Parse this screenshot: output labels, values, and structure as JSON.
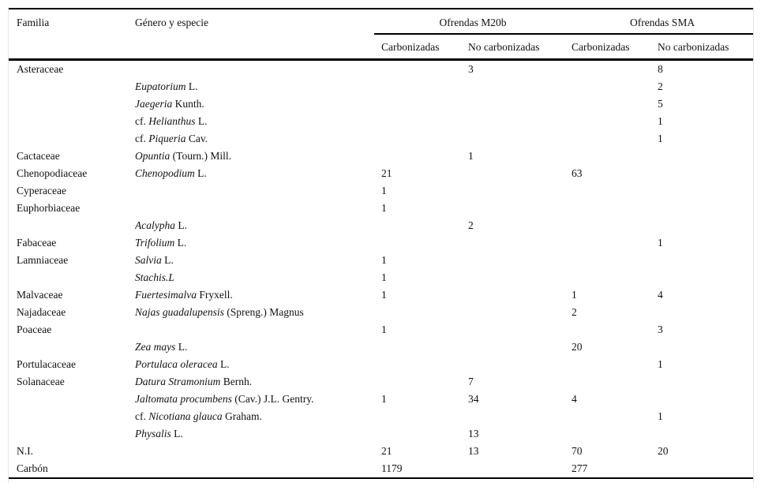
{
  "table": {
    "headers": {
      "familia": "Familia",
      "genero": "Género y especie",
      "group_m20b": "Ofrendas M20b",
      "group_sma": "Ofrendas SMA",
      "m20b_carb": "Carbonizadas",
      "m20b_nocarb": "No carbonizadas",
      "sma_carb": "Carbonizadas",
      "sma_nocarb": "No carbonizadas"
    },
    "rows": [
      {
        "familia": "Asteraceae",
        "prefix": "",
        "italic": "",
        "suffix": "",
        "m20b_carb": "",
        "m20b_nocarb": "3",
        "sma_carb": "",
        "sma_nocarb": "8"
      },
      {
        "familia": "",
        "prefix": "",
        "italic": "Eupatorium",
        "suffix": " L.",
        "m20b_carb": "",
        "m20b_nocarb": "",
        "sma_carb": "",
        "sma_nocarb": "2"
      },
      {
        "familia": "",
        "prefix": "",
        "italic": "Jaegeria",
        "suffix": " Kunth.",
        "m20b_carb": "",
        "m20b_nocarb": "",
        "sma_carb": "",
        "sma_nocarb": "5"
      },
      {
        "familia": "",
        "prefix": "cf. ",
        "italic": "Helianthus",
        "suffix": " L.",
        "m20b_carb": "",
        "m20b_nocarb": "",
        "sma_carb": "",
        "sma_nocarb": "1"
      },
      {
        "familia": "",
        "prefix": "cf. ",
        "italic": "Piqueria",
        "suffix": " Cav.",
        "m20b_carb": "",
        "m20b_nocarb": "",
        "sma_carb": "",
        "sma_nocarb": "1"
      },
      {
        "familia": "Cactaceae",
        "prefix": "",
        "italic": "Opuntia",
        "suffix": " (Tourn.) Mill.",
        "m20b_carb": "",
        "m20b_nocarb": "1",
        "sma_carb": "",
        "sma_nocarb": ""
      },
      {
        "familia": "Chenopodiaceae",
        "prefix": "",
        "italic": "Chenopodium",
        "suffix": " L.",
        "m20b_carb": "21",
        "m20b_nocarb": "",
        "sma_carb": "63",
        "sma_nocarb": ""
      },
      {
        "familia": "Cyperaceae",
        "prefix": "",
        "italic": "",
        "suffix": "",
        "m20b_carb": "1",
        "m20b_nocarb": "",
        "sma_carb": "",
        "sma_nocarb": ""
      },
      {
        "familia": "Euphorbiaceae",
        "prefix": "",
        "italic": "",
        "suffix": "",
        "m20b_carb": "1",
        "m20b_nocarb": "",
        "sma_carb": "",
        "sma_nocarb": ""
      },
      {
        "familia": "",
        "prefix": "",
        "italic": "Acalypha",
        "suffix": " L.",
        "m20b_carb": "",
        "m20b_nocarb": "2",
        "sma_carb": "",
        "sma_nocarb": ""
      },
      {
        "familia": "Fabaceae",
        "prefix": "",
        "italic": "Trifolium",
        "suffix": " L.",
        "m20b_carb": "",
        "m20b_nocarb": "",
        "sma_carb": "",
        "sma_nocarb": "1"
      },
      {
        "familia": "Lamniaceae",
        "prefix": "",
        "italic": "Salvia",
        "suffix": " L.",
        "m20b_carb": "1",
        "m20b_nocarb": "",
        "sma_carb": "",
        "sma_nocarb": ""
      },
      {
        "familia": "",
        "prefix": "",
        "italic": "Stachis.L",
        "suffix": "",
        "m20b_carb": "1",
        "m20b_nocarb": "",
        "sma_carb": "",
        "sma_nocarb": ""
      },
      {
        "familia": "Malvaceae",
        "prefix": "",
        "italic": "Fuertesimalva",
        "suffix": " Fryxell.",
        "m20b_carb": "1",
        "m20b_nocarb": "",
        "sma_carb": "1",
        "sma_nocarb": "4"
      },
      {
        "familia": "Najadaceae",
        "prefix": "",
        "italic": "Najas guadalupensis",
        "suffix": " (Spreng.) Magnus",
        "m20b_carb": "",
        "m20b_nocarb": "",
        "sma_carb": "2",
        "sma_nocarb": ""
      },
      {
        "familia": "Poaceae",
        "prefix": "",
        "italic": "",
        "suffix": "",
        "m20b_carb": "1",
        "m20b_nocarb": "",
        "sma_carb": "",
        "sma_nocarb": "3"
      },
      {
        "familia": "",
        "prefix": "",
        "italic": "Zea mays",
        "suffix": " L.",
        "m20b_carb": "",
        "m20b_nocarb": "",
        "sma_carb": "20",
        "sma_nocarb": ""
      },
      {
        "familia": "Portulacaceae",
        "prefix": "",
        "italic": "Portulaca oleracea",
        "suffix": " L.",
        "m20b_carb": "",
        "m20b_nocarb": "",
        "sma_carb": "",
        "sma_nocarb": "1"
      },
      {
        "familia": "Solanaceae",
        "prefix": "",
        "italic": "Datura Stramonium",
        "suffix": " Bernh.",
        "m20b_carb": "",
        "m20b_nocarb": "7",
        "sma_carb": "",
        "sma_nocarb": ""
      },
      {
        "familia": "",
        "prefix": "",
        "italic": "Jaltomata procumbens",
        "suffix": " (Cav.) J.L. Gentry.",
        "m20b_carb": "1",
        "m20b_nocarb": "34",
        "sma_carb": "4",
        "sma_nocarb": ""
      },
      {
        "familia": "",
        "prefix": "cf. ",
        "italic": "Nicotiana glauca",
        "suffix": " Graham.",
        "m20b_carb": "",
        "m20b_nocarb": "",
        "sma_carb": "",
        "sma_nocarb": "1"
      },
      {
        "familia": "",
        "prefix": "",
        "italic": "Physalis",
        "suffix": " L.",
        "m20b_carb": "",
        "m20b_nocarb": "13",
        "sma_carb": "",
        "sma_nocarb": ""
      },
      {
        "familia": "N.I.",
        "prefix": "",
        "italic": "",
        "suffix": "",
        "m20b_carb": "21",
        "m20b_nocarb": "13",
        "sma_carb": "70",
        "sma_nocarb": "20"
      },
      {
        "familia": "Carbón",
        "prefix": "",
        "italic": "",
        "suffix": "",
        "m20b_carb": "1179",
        "m20b_nocarb": "",
        "sma_carb": "277",
        "sma_nocarb": ""
      }
    ]
  }
}
